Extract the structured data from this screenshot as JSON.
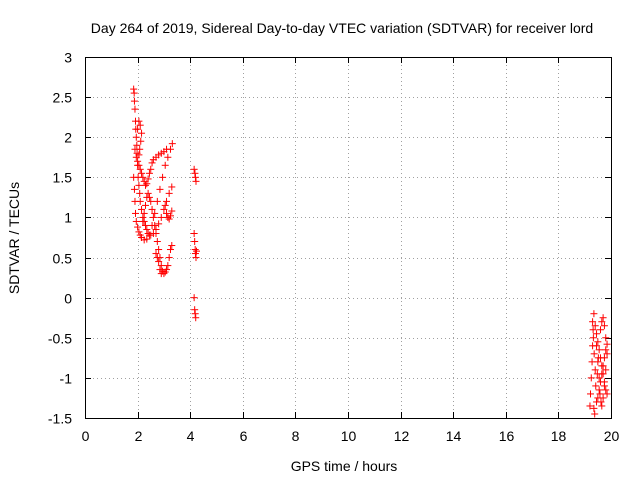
{
  "chart_data": {
    "type": "scatter",
    "title": "Day 264 of 2019, Sidereal Day-to-day VTEC variation (SDTVAR) for receiver lord",
    "xlabel": "GPS time / hours",
    "ylabel": "SDTVAR / TECUs",
    "xlim": [
      0,
      20
    ],
    "ylim": [
      -1.5,
      3
    ],
    "grid": true,
    "marker": "+",
    "x_ticks": [
      "0",
      "2",
      "4",
      "6",
      "8",
      "10",
      "12",
      "14",
      "16",
      "18",
      "20"
    ],
    "y_ticks": [
      "3",
      "2.5",
      "2",
      "1.5",
      "1",
      "0.5",
      "0",
      "-0.5",
      "-1",
      "-1.5"
    ],
    "colors": {
      "points": "#ff0000"
    },
    "series": [
      {
        "name": "SDTVAR",
        "points": [
          [
            1.85,
            2.6
          ],
          [
            1.87,
            2.55
          ],
          [
            1.88,
            2.45
          ],
          [
            1.9,
            2.35
          ],
          [
            1.92,
            2.2
          ],
          [
            1.93,
            2.1
          ],
          [
            1.95,
            2.0
          ],
          [
            1.97,
            1.9
          ],
          [
            1.98,
            1.8
          ],
          [
            2.0,
            1.65
          ],
          [
            2.02,
            1.5
          ],
          [
            2.05,
            1.4
          ],
          [
            2.08,
            1.3
          ],
          [
            2.1,
            1.2
          ],
          [
            2.15,
            1.1
          ],
          [
            2.2,
            1.0
          ],
          [
            2.25,
            0.95
          ],
          [
            2.3,
            0.9
          ],
          [
            2.35,
            0.85
          ],
          [
            2.4,
            0.8
          ],
          [
            2.5,
            0.78
          ],
          [
            2.6,
            0.8
          ],
          [
            2.7,
            0.85
          ],
          [
            2.8,
            0.92
          ],
          [
            2.9,
            1.0
          ],
          [
            3.0,
            1.1
          ],
          [
            3.1,
            1.2
          ],
          [
            3.2,
            1.3
          ],
          [
            3.3,
            1.38
          ],
          [
            1.85,
            1.5
          ],
          [
            1.88,
            1.35
          ],
          [
            1.9,
            1.2
          ],
          [
            1.92,
            1.05
          ],
          [
            1.95,
            0.95
          ],
          [
            2.0,
            0.88
          ],
          [
            2.05,
            0.82
          ],
          [
            2.1,
            0.78
          ],
          [
            2.15,
            0.75
          ],
          [
            2.25,
            0.72
          ],
          [
            2.35,
            0.73
          ],
          [
            2.45,
            0.78
          ],
          [
            2.55,
            0.9
          ],
          [
            2.65,
            1.05
          ],
          [
            2.75,
            1.2
          ],
          [
            2.85,
            1.35
          ],
          [
            2.95,
            1.5
          ],
          [
            3.05,
            1.65
          ],
          [
            3.15,
            1.75
          ],
          [
            3.25,
            1.85
          ],
          [
            3.32,
            1.92
          ],
          [
            1.9,
            1.85
          ],
          [
            1.95,
            1.75
          ],
          [
            2.0,
            1.7
          ],
          [
            2.05,
            1.65
          ],
          [
            2.1,
            1.6
          ],
          [
            2.15,
            1.55
          ],
          [
            2.2,
            1.5
          ],
          [
            2.25,
            1.45
          ],
          [
            2.3,
            1.4
          ],
          [
            2.35,
            1.42
          ],
          [
            2.4,
            1.48
          ],
          [
            2.45,
            1.55
          ],
          [
            2.5,
            1.6
          ],
          [
            2.55,
            1.68
          ],
          [
            2.6,
            1.72
          ],
          [
            2.7,
            1.75
          ],
          [
            2.8,
            1.78
          ],
          [
            2.9,
            1.8
          ],
          [
            3.0,
            1.82
          ],
          [
            3.1,
            1.85
          ],
          [
            2.0,
            2.1
          ],
          [
            2.05,
            2.2
          ],
          [
            2.1,
            2.15
          ],
          [
            2.15,
            2.05
          ],
          [
            2.12,
            1.95
          ],
          [
            2.08,
            1.85
          ],
          [
            2.05,
            1.78
          ],
          [
            2.2,
            0.95
          ],
          [
            2.25,
            1.05
          ],
          [
            2.3,
            1.15
          ],
          [
            2.35,
            1.25
          ],
          [
            2.4,
            1.3
          ],
          [
            2.45,
            1.25
          ],
          [
            2.5,
            1.2
          ],
          [
            2.55,
            1.1
          ],
          [
            2.6,
            1.0
          ],
          [
            2.65,
            0.9
          ],
          [
            2.7,
            0.8
          ],
          [
            2.75,
            0.7
          ],
          [
            2.8,
            0.6
          ],
          [
            2.85,
            0.5
          ],
          [
            2.9,
            0.4
          ],
          [
            2.95,
            0.33
          ],
          [
            3.0,
            0.3
          ],
          [
            3.05,
            0.32
          ],
          [
            3.1,
            0.35
          ],
          [
            3.15,
            0.4
          ],
          [
            3.2,
            0.5
          ],
          [
            3.25,
            0.6
          ],
          [
            3.3,
            0.65
          ],
          [
            2.7,
            0.55
          ],
          [
            2.75,
            0.5
          ],
          [
            2.8,
            0.45
          ],
          [
            2.85,
            0.35
          ],
          [
            2.9,
            0.3
          ],
          [
            3.05,
            1.15
          ],
          [
            3.1,
            1.05
          ],
          [
            3.15,
            1.0
          ],
          [
            3.2,
            0.98
          ],
          [
            3.25,
            1.02
          ],
          [
            3.3,
            1.08
          ],
          [
            4.15,
            1.6
          ],
          [
            4.18,
            1.55
          ],
          [
            4.2,
            1.5
          ],
          [
            4.22,
            1.45
          ],
          [
            4.15,
            0.8
          ],
          [
            4.17,
            0.7
          ],
          [
            4.19,
            0.6
          ],
          [
            4.2,
            0.55
          ],
          [
            4.22,
            0.5
          ],
          [
            4.24,
            0.58
          ],
          [
            4.15,
            0.0
          ],
          [
            4.17,
            -0.15
          ],
          [
            4.19,
            -0.2
          ],
          [
            4.21,
            -0.25
          ],
          [
            19.2,
            -1.35
          ],
          [
            19.22,
            -1.2
          ],
          [
            19.25,
            -1.0
          ],
          [
            19.28,
            -0.8
          ],
          [
            19.3,
            -0.6
          ],
          [
            19.32,
            -0.4
          ],
          [
            19.35,
            -0.2
          ],
          [
            19.3,
            -0.3
          ],
          [
            19.33,
            -0.5
          ],
          [
            19.36,
            -0.7
          ],
          [
            19.4,
            -0.9
          ],
          [
            19.42,
            -1.1
          ],
          [
            19.45,
            -1.3
          ],
          [
            19.38,
            -1.45
          ],
          [
            19.35,
            -1.38
          ],
          [
            19.4,
            -0.35
          ],
          [
            19.45,
            -0.45
          ],
          [
            19.5,
            -0.55
          ],
          [
            19.55,
            -0.65
          ],
          [
            19.6,
            -0.75
          ],
          [
            19.65,
            -0.85
          ],
          [
            19.7,
            -0.95
          ],
          [
            19.75,
            -1.05
          ],
          [
            19.8,
            -1.15
          ],
          [
            19.85,
            -1.2
          ],
          [
            19.5,
            -1.25
          ],
          [
            19.55,
            -1.15
          ],
          [
            19.6,
            -1.05
          ],
          [
            19.65,
            -0.95
          ],
          [
            19.7,
            -0.85
          ],
          [
            19.75,
            -0.75
          ],
          [
            19.8,
            -0.65
          ],
          [
            19.85,
            -0.58
          ],
          [
            19.6,
            -0.4
          ],
          [
            19.65,
            -0.3
          ],
          [
            19.7,
            -0.25
          ],
          [
            19.75,
            -0.35
          ],
          [
            19.8,
            -0.5
          ],
          [
            19.85,
            -0.7
          ],
          [
            19.8,
            -0.9
          ],
          [
            19.75,
            -1.1
          ],
          [
            19.7,
            -1.25
          ],
          [
            19.65,
            -1.35
          ],
          [
            19.45,
            -0.6
          ],
          [
            19.5,
            -0.8
          ],
          [
            19.55,
            -1.0
          ],
          [
            19.58,
            -1.2
          ],
          [
            19.62,
            -1.3
          ],
          [
            19.48,
            -0.95
          ],
          [
            19.52,
            -0.75
          ]
        ]
      }
    ]
  }
}
